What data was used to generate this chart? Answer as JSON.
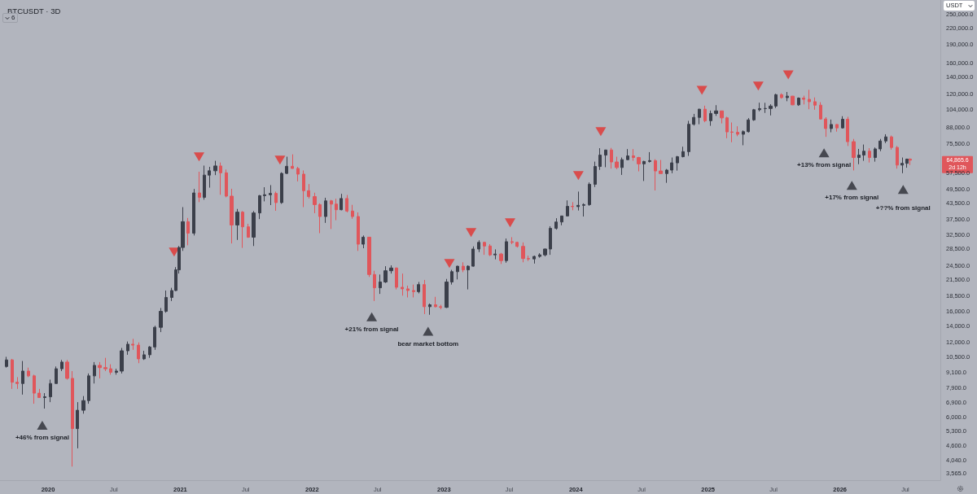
{
  "chart_data": {
    "type": "candlestick",
    "title": "BTCUSDT · 3D",
    "ylabel": "USDT",
    "log": true,
    "marker": "triangle",
    "xlim": [
      "2019-08-21",
      "2026-10-06"
    ],
    "ylim": [
      3350,
      286000
    ],
    "xticks": [
      {
        "value": "2020-01-01",
        "label": "2020"
      },
      {
        "value": "2020-07-01",
        "label": "Jul"
      },
      {
        "value": "2021-01-01",
        "label": "2021"
      },
      {
        "value": "2021-07-01",
        "label": "Jul"
      },
      {
        "value": "2022-01-01",
        "label": "2022"
      },
      {
        "value": "2022-07-01",
        "label": "Jul"
      },
      {
        "value": "2023-01-01",
        "label": "2023"
      },
      {
        "value": "2023-07-01",
        "label": "Jul"
      },
      {
        "value": "2024-01-01",
        "label": "2024"
      },
      {
        "value": "2024-07-01",
        "label": "Jul"
      },
      {
        "value": "2025-01-01",
        "label": "2025"
      },
      {
        "value": "2025-07-01",
        "label": "Jul"
      },
      {
        "value": "2026-01-01",
        "label": "2026"
      },
      {
        "value": "2026-07-01",
        "label": "Jul"
      }
    ],
    "yticks": [
      {
        "value": 3565,
        "label": "3,565.0"
      },
      {
        "value": 4040,
        "label": "4,040.0"
      },
      {
        "value": 4600,
        "label": "4,600.0"
      },
      {
        "value": 5300,
        "label": "5,300.0"
      },
      {
        "value": 6000,
        "label": "6,000.0"
      },
      {
        "value": 6900,
        "label": "6,900.0"
      },
      {
        "value": 7900,
        "label": "7,900.0"
      },
      {
        "value": 9100,
        "label": "9,100.0"
      },
      {
        "value": 10500,
        "label": "10,500.0"
      },
      {
        "value": 12000,
        "label": "12,000.0"
      },
      {
        "value": 14000,
        "label": "14,000.0"
      },
      {
        "value": 16000,
        "label": "16,000.0"
      },
      {
        "value": 18500,
        "label": "18,500.0"
      },
      {
        "value": 21500,
        "label": "21,500.0"
      },
      {
        "value": 24500,
        "label": "24,500.0"
      },
      {
        "value": 28500,
        "label": "28,500.0"
      },
      {
        "value": 32500,
        "label": "32,500.0"
      },
      {
        "value": 37500,
        "label": "37,500.0"
      },
      {
        "value": 43500,
        "label": "43,500.0"
      },
      {
        "value": 49500,
        "label": "49,500.0"
      },
      {
        "value": 57500,
        "label": "57,500.0"
      },
      {
        "value": 75500,
        "label": "75,500.0"
      },
      {
        "value": 88000,
        "label": "88,000.0"
      },
      {
        "value": 104000,
        "label": "104,000.0"
      },
      {
        "value": 120000,
        "label": "120,000.0"
      },
      {
        "value": 140000,
        "label": "140,000.0"
      },
      {
        "value": 160000,
        "label": "160,000.0"
      },
      {
        "value": 190000,
        "label": "190,000.0"
      },
      {
        "value": 220000,
        "label": "220,000.0"
      },
      {
        "value": 250000,
        "label": "250,000.0"
      }
    ],
    "x": [
      "2019-09-08",
      "2019-09-23",
      "2019-10-08",
      "2019-10-23",
      "2019-11-08",
      "2019-11-23",
      "2019-12-08",
      "2019-12-23",
      "2020-01-08",
      "2020-01-23",
      "2020-02-08",
      "2020-02-23",
      "2020-03-08",
      "2020-03-23",
      "2020-04-08",
      "2020-04-23",
      "2020-05-08",
      "2020-05-23",
      "2020-06-08",
      "2020-06-23",
      "2020-07-08",
      "2020-07-23",
      "2020-08-08",
      "2020-08-23",
      "2020-09-08",
      "2020-09-23",
      "2020-10-08",
      "2020-10-23",
      "2020-11-08",
      "2020-11-23",
      "2020-12-08",
      "2020-12-19",
      "2020-12-28",
      "2021-01-08",
      "2021-01-23",
      "2021-02-08",
      "2021-02-23",
      "2021-03-08",
      "2021-03-23",
      "2021-04-08",
      "2021-04-23",
      "2021-05-08",
      "2021-05-23",
      "2021-06-08",
      "2021-06-23",
      "2021-07-08",
      "2021-07-23",
      "2021-08-08",
      "2021-08-23",
      "2021-09-08",
      "2021-09-23",
      "2021-10-08",
      "2021-10-23",
      "2021-11-08",
      "2021-11-23",
      "2021-12-08",
      "2021-12-23",
      "2022-01-08",
      "2022-01-23",
      "2022-02-08",
      "2022-02-23",
      "2022-03-08",
      "2022-03-23",
      "2022-04-08",
      "2022-04-23",
      "2022-05-08",
      "2022-05-23",
      "2022-06-08",
      "2022-06-23",
      "2022-07-08",
      "2022-07-23",
      "2022-08-08",
      "2022-08-23",
      "2022-09-08",
      "2022-09-23",
      "2022-10-08",
      "2022-10-23",
      "2022-11-08",
      "2022-11-23",
      "2022-12-08",
      "2022-12-23",
      "2023-01-08",
      "2023-01-23",
      "2023-02-08",
      "2023-02-23",
      "2023-03-08",
      "2023-03-23",
      "2023-04-08",
      "2023-04-23",
      "2023-05-08",
      "2023-05-23",
      "2023-06-08",
      "2023-06-23",
      "2023-07-08",
      "2023-07-23",
      "2023-08-08",
      "2023-08-23",
      "2023-09-08",
      "2023-09-23",
      "2023-10-08",
      "2023-10-23",
      "2023-11-08",
      "2023-11-23",
      "2023-12-08",
      "2023-12-23",
      "2024-01-08",
      "2024-01-23",
      "2024-02-08",
      "2024-02-23",
      "2024-03-08",
      "2024-03-23",
      "2024-04-08",
      "2024-04-23",
      "2024-05-08",
      "2024-05-23",
      "2024-06-08",
      "2024-06-23",
      "2024-07-08",
      "2024-07-23",
      "2024-08-08",
      "2024-08-23",
      "2024-09-08",
      "2024-09-23",
      "2024-10-08",
      "2024-10-23",
      "2024-11-08",
      "2024-11-23",
      "2024-12-08",
      "2024-12-23",
      "2025-01-08",
      "2025-01-23",
      "2025-02-08",
      "2025-02-23",
      "2025-03-08",
      "2025-03-23",
      "2025-04-08",
      "2025-04-23",
      "2025-05-08",
      "2025-05-23",
      "2025-06-08",
      "2025-06-23",
      "2025-07-08",
      "2025-07-23",
      "2025-08-08",
      "2025-08-23",
      "2025-09-08",
      "2025-09-23",
      "2025-10-08",
      "2025-10-23",
      "2025-11-08",
      "2025-11-23",
      "2025-12-08",
      "2025-12-23",
      "2026-01-08",
      "2026-01-23",
      "2026-02-08",
      "2026-02-23",
      "2026-03-08",
      "2026-03-23",
      "2026-04-08",
      "2026-04-23",
      "2026-05-08",
      "2026-05-23",
      "2026-06-08",
      "2026-06-23",
      "2026-07-06",
      "2026-07-14"
    ],
    "ohlc": [
      [
        9600,
        10500,
        9500,
        10200
      ],
      [
        10200,
        10300,
        7800,
        8300
      ],
      [
        8300,
        8700,
        7800,
        8200
      ],
      [
        8200,
        10100,
        7400,
        9200
      ],
      [
        9200,
        9500,
        8700,
        8800
      ],
      [
        8800,
        8900,
        6800,
        7500
      ],
      [
        7500,
        7800,
        7200,
        7200
      ],
      [
        7200,
        7500,
        6500,
        7250
      ],
      [
        7250,
        8500,
        6900,
        8200
      ],
      [
        8200,
        9600,
        8200,
        9400
      ],
      [
        9400,
        10200,
        9200,
        10000
      ],
      [
        10000,
        10200,
        8500,
        8600
      ],
      [
        8600,
        9200,
        3800,
        5400
      ],
      [
        5400,
        6900,
        4500,
        6400
      ],
      [
        6400,
        7300,
        6200,
        7000
      ],
      [
        7000,
        9000,
        6800,
        8800
      ],
      [
        8800,
        10000,
        8200,
        9700
      ],
      [
        9700,
        10000,
        8600,
        9500
      ],
      [
        9500,
        10400,
        9200,
        9400
      ],
      [
        9400,
        9800,
        8900,
        9100
      ],
      [
        9100,
        9400,
        8900,
        9200
      ],
      [
        9200,
        11400,
        9000,
        11100
      ],
      [
        11100,
        12100,
        10700,
        11800
      ],
      [
        11800,
        12400,
        11200,
        11700
      ],
      [
        11700,
        12000,
        9900,
        10300
      ],
      [
        10300,
        11100,
        10200,
        10700
      ],
      [
        10700,
        11600,
        10400,
        11500
      ],
      [
        11500,
        14000,
        11200,
        13800
      ],
      [
        13800,
        16500,
        13200,
        16000
      ],
      [
        16000,
        19400,
        15800,
        18200
      ],
      [
        18200,
        19900,
        17600,
        19400
      ],
      [
        19400,
        24100,
        19300,
        23500
      ],
      [
        23500,
        29300,
        22700,
        28900
      ],
      [
        28900,
        42000,
        28000,
        36700
      ],
      [
        36700,
        38000,
        29500,
        33000
      ],
      [
        33000,
        49700,
        32300,
        47900
      ],
      [
        47900,
        58300,
        44000,
        46000
      ],
      [
        46000,
        61700,
        45000,
        56500
      ],
      [
        56500,
        61000,
        50300,
        58800
      ],
      [
        58800,
        64500,
        56500,
        61500
      ],
      [
        61500,
        63500,
        47100,
        57700
      ],
      [
        57700,
        59500,
        46000,
        46500
      ],
      [
        46500,
        49800,
        30000,
        35600
      ],
      [
        35600,
        41300,
        31000,
        40100
      ],
      [
        40100,
        40500,
        28800,
        35000
      ],
      [
        35000,
        36000,
        31600,
        31800
      ],
      [
        31800,
        40500,
        29300,
        39800
      ],
      [
        39800,
        47000,
        37600,
        46700
      ],
      [
        46700,
        50500,
        44300,
        47100
      ],
      [
        47100,
        51500,
        42800,
        47700
      ],
      [
        47700,
        48500,
        40600,
        43800
      ],
      [
        43800,
        58000,
        43300,
        57400
      ],
      [
        57400,
        67000,
        57000,
        61300
      ],
      [
        61300,
        68500,
        60000,
        60100
      ],
      [
        60100,
        61000,
        53300,
        57000
      ],
      [
        57000,
        59000,
        42000,
        48900
      ],
      [
        48900,
        52000,
        45500,
        46300
      ],
      [
        46300,
        48000,
        39700,
        43000
      ],
      [
        43000,
        43500,
        33000,
        38500
      ],
      [
        38500,
        45800,
        36300,
        44500
      ],
      [
        44500,
        44900,
        34300,
        43200
      ],
      [
        43200,
        45400,
        37200,
        41000
      ],
      [
        41000,
        47500,
        40800,
        45500
      ],
      [
        45500,
        47000,
        40000,
        40500
      ],
      [
        40500,
        42900,
        37700,
        38500
      ],
      [
        38500,
        40000,
        28000,
        29800
      ],
      [
        29800,
        32300,
        28700,
        31800
      ],
      [
        31800,
        31900,
        22000,
        22500
      ],
      [
        22500,
        23300,
        17600,
        19900
      ],
      [
        19900,
        22500,
        18800,
        21000
      ],
      [
        21000,
        24300,
        20800,
        23300
      ],
      [
        23300,
        24500,
        22700,
        23900
      ],
      [
        23900,
        24000,
        19600,
        20000
      ],
      [
        20000,
        22700,
        18500,
        19700
      ],
      [
        19700,
        20300,
        18200,
        19400
      ],
      [
        19400,
        20500,
        18200,
        19200
      ],
      [
        19200,
        21000,
        18900,
        20500
      ],
      [
        20500,
        21400,
        15600,
        16700
      ],
      [
        16700,
        17200,
        15500,
        17000
      ],
      [
        17000,
        18300,
        16600,
        16700
      ],
      [
        16700,
        17000,
        16300,
        16600
      ],
      [
        16600,
        21600,
        16500,
        21000
      ],
      [
        21000,
        23500,
        20500,
        23100
      ],
      [
        23100,
        24400,
        21500,
        24300
      ],
      [
        24300,
        25200,
        23000,
        23500
      ],
      [
        23500,
        24500,
        19600,
        24300
      ],
      [
        24300,
        29200,
        24200,
        28500
      ],
      [
        28500,
        30900,
        27700,
        30300
      ],
      [
        30300,
        30500,
        27000,
        29300
      ],
      [
        29300,
        29800,
        26700,
        27000
      ],
      [
        27000,
        28400,
        25900,
        27200
      ],
      [
        27200,
        27500,
        24800,
        25600
      ],
      [
        25600,
        31400,
        25100,
        30500
      ],
      [
        30500,
        31800,
        29800,
        30300
      ],
      [
        30300,
        30500,
        28900,
        29200
      ],
      [
        29200,
        30300,
        25200,
        26100
      ],
      [
        26100,
        26800,
        25500,
        26000
      ],
      [
        26000,
        26800,
        24900,
        26600
      ],
      [
        26600,
        27400,
        26300,
        27000
      ],
      [
        27000,
        28600,
        26600,
        28500
      ],
      [
        28500,
        35200,
        27000,
        34500
      ],
      [
        34500,
        37900,
        34100,
        36600
      ],
      [
        36600,
        38800,
        35500,
        38700
      ],
      [
        38700,
        44700,
        38500,
        42300
      ],
      [
        42300,
        44000,
        40800,
        42200
      ],
      [
        42200,
        48500,
        40700,
        42700
      ],
      [
        42700,
        43500,
        38500,
        43000
      ],
      [
        43000,
        52800,
        42500,
        51900
      ],
      [
        51900,
        64000,
        50600,
        61200
      ],
      [
        61200,
        72500,
        59300,
        68000
      ],
      [
        68000,
        71500,
        60800,
        71300
      ],
      [
        71300,
        72700,
        60000,
        63800
      ],
      [
        63800,
        67000,
        59700,
        60600
      ],
      [
        60600,
        66500,
        56600,
        65200
      ],
      [
        65200,
        71900,
        65000,
        67500
      ],
      [
        67500,
        71900,
        64500,
        66500
      ],
      [
        66500,
        66900,
        58500,
        62700
      ],
      [
        62700,
        64500,
        53500,
        64100
      ],
      [
        64100,
        69900,
        63500,
        64600
      ],
      [
        64600,
        65500,
        49000,
        58700
      ],
      [
        58700,
        65000,
        57200,
        57300
      ],
      [
        57300,
        59800,
        52600,
        59200
      ],
      [
        59200,
        66500,
        57500,
        63300
      ],
      [
        63300,
        67500,
        58900,
        67000
      ],
      [
        67000,
        73500,
        66600,
        70200
      ],
      [
        70200,
        93400,
        67500,
        90500
      ],
      [
        90500,
        99600,
        89400,
        96400
      ],
      [
        96400,
        104500,
        90500,
        104000
      ],
      [
        104000,
        107500,
        92200,
        93500
      ],
      [
        93500,
        102700,
        89200,
        100000
      ],
      [
        100000,
        108000,
        97800,
        102400
      ],
      [
        102400,
        102500,
        91200,
        96000
      ],
      [
        96000,
        97000,
        79500,
        84300
      ],
      [
        84300,
        92000,
        76600,
        84000
      ],
      [
        84000,
        88800,
        81000,
        82500
      ],
      [
        82500,
        85500,
        74500,
        84500
      ],
      [
        84500,
        95800,
        83800,
        94200
      ],
      [
        94200,
        104300,
        93400,
        103500
      ],
      [
        103500,
        110500,
        102000,
        104600
      ],
      [
        104600,
        110400,
        100500,
        104700
      ],
      [
        104700,
        108900,
        98200,
        107100
      ],
      [
        107100,
        120000,
        105200,
        119000
      ],
      [
        119000,
        120500,
        114700,
        115800
      ],
      [
        115800,
        122000,
        112000,
        117400
      ],
      [
        117400,
        117600,
        108000,
        108300
      ],
      [
        108300,
        116000,
        107300,
        115300
      ],
      [
        115300,
        117900,
        108700,
        114000
      ],
      [
        114000,
        124500,
        104000,
        111500
      ],
      [
        111500,
        116000,
        103500,
        108000
      ],
      [
        108000,
        111000,
        94500,
        95000
      ],
      [
        95000,
        96600,
        80500,
        87000
      ],
      [
        87000,
        94500,
        84000,
        90300
      ],
      [
        90300,
        90500,
        84500,
        87500
      ],
      [
        87500,
        97500,
        87000,
        94800
      ],
      [
        94800,
        97000,
        74000,
        77000
      ],
      [
        77000,
        79000,
        59000,
        66500
      ],
      [
        66500,
        72000,
        62500,
        68000
      ],
      [
        68000,
        75000,
        64500,
        70500
      ],
      [
        70500,
        72500,
        63500,
        66500
      ],
      [
        66500,
        73000,
        64000,
        72000
      ],
      [
        72000,
        79000,
        70500,
        77500
      ],
      [
        77500,
        82500,
        76000,
        80500
      ],
      [
        80500,
        81500,
        71500,
        73000
      ],
      [
        73000,
        74000,
        60000,
        62000
      ],
      [
        62000,
        66500,
        57500,
        63000
      ],
      [
        63000,
        65800,
        60500,
        65500
      ],
      [
        65500,
        66000,
        62000,
        64865.6
      ]
    ],
    "colors": [
      "#3b3f4a",
      "#e0565b",
      "#e0565b",
      "#3b3f4a",
      "#e0565b",
      "#e0565b",
      "#e0565b",
      "#3b3f4a",
      "#3b3f4a",
      "#3b3f4a",
      "#3b3f4a",
      "#e0565b",
      "#e0565b",
      "#3b3f4a",
      "#3b3f4a",
      "#3b3f4a",
      "#3b3f4a",
      "#e0565b",
      "#e0565b",
      "#e0565b",
      "#3b3f4a",
      "#3b3f4a",
      "#3b3f4a",
      "#e0565b",
      "#e0565b",
      "#3b3f4a",
      "#3b3f4a",
      "#3b3f4a",
      "#3b3f4a",
      "#3b3f4a",
      "#3b3f4a",
      "#3b3f4a",
      "#3b3f4a",
      "#3b3f4a",
      "#e0565b",
      "#3b3f4a",
      "#e0565b",
      "#3b3f4a",
      "#3b3f4a",
      "#3b3f4a",
      "#e0565b",
      "#e0565b",
      "#e0565b",
      "#3b3f4a",
      "#e0565b",
      "#e0565b",
      "#3b3f4a",
      "#3b3f4a",
      "#3b3f4a",
      "#3b3f4a",
      "#e0565b",
      "#3b3f4a",
      "#3b3f4a",
      "#e0565b",
      "#e0565b",
      "#e0565b",
      "#e0565b",
      "#e0565b",
      "#e0565b",
      "#3b3f4a",
      "#e0565b",
      "#e0565b",
      "#3b3f4a",
      "#e0565b",
      "#e0565b",
      "#e0565b",
      "#3b3f4a",
      "#e0565b",
      "#e0565b",
      "#3b3f4a",
      "#3b3f4a",
      "#3b3f4a",
      "#e0565b",
      "#e0565b",
      "#e0565b",
      "#e0565b",
      "#3b3f4a",
      "#e0565b",
      "#3b3f4a",
      "#e0565b",
      "#e0565b",
      "#3b3f4a",
      "#3b3f4a",
      "#3b3f4a",
      "#e0565b",
      "#3b3f4a",
      "#3b3f4a",
      "#3b3f4a",
      "#e0565b",
      "#e0565b",
      "#3b3f4a",
      "#e0565b",
      "#3b3f4a",
      "#e0565b",
      "#e0565b",
      "#e0565b",
      "#e0565b",
      "#3b3f4a",
      "#3b3f4a",
      "#3b3f4a",
      "#3b3f4a",
      "#3b3f4a",
      "#3b3f4a",
      "#3b3f4a",
      "#e0565b",
      "#3b3f4a",
      "#3b3f4a",
      "#3b3f4a",
      "#3b3f4a",
      "#3b3f4a",
      "#3b3f4a",
      "#e0565b",
      "#e0565b",
      "#3b3f4a",
      "#3b3f4a",
      "#e0565b",
      "#e0565b",
      "#3b3f4a",
      "#3b3f4a",
      "#e0565b",
      "#e0565b",
      "#3b3f4a",
      "#3b3f4a",
      "#3b3f4a",
      "#3b3f4a",
      "#3b3f4a",
      "#3b3f4a",
      "#3b3f4a",
      "#e0565b",
      "#3b3f4a",
      "#3b3f4a",
      "#e0565b",
      "#e0565b",
      "#e0565b",
      "#e0565b",
      "#3b3f4a",
      "#3b3f4a",
      "#3b3f4a",
      "#3b3f4a",
      "#3b3f4a",
      "#3b3f4a",
      "#3b3f4a",
      "#e0565b",
      "#3b3f4a",
      "#e0565b",
      "#3b3f4a",
      "#e0565b",
      "#e0565b",
      "#e0565b",
      "#e0565b",
      "#e0565b",
      "#3b3f4a",
      "#e0565b",
      "#3b3f4a",
      "#e0565b",
      "#e0565b",
      "#3b3f4a",
      "#3b3f4a",
      "#e0565b",
      "#3b3f4a",
      "#3b3f4a",
      "#3b3f4a",
      "#e0565b",
      "#e0565b",
      "#3b3f4a",
      "#3b3f4a",
      "#e0565b"
    ],
    "series": [
      {
        "type": "scatter",
        "color": "#e2322f",
        "x": [
          "2020-12-15",
          "2021-02-22",
          "2021-10-04",
          "2023-01-16",
          "2023-03-17",
          "2023-07-03",
          "2024-01-08",
          "2024-03-10",
          "2024-12-15",
          "2025-05-20",
          "2025-08-11"
        ],
        "values": [
          27700,
          66900,
          64900,
          24900,
          33200,
          36300,
          56200,
          84500,
          124000,
          128800,
          143000
        ]
      },
      {
        "type": "scatter",
        "color": "#2a2d34",
        "x": [
          "2019-12-16",
          "2022-06-15",
          "2022-11-18",
          "2025-11-18",
          "2026-02-03",
          "2026-06-25"
        ],
        "values": [
          5570,
          15200,
          13300,
          69500,
          51400,
          49500
        ]
      }
    ],
    "annotations": [
      {
        "text": "+46% from signal",
        "x": "2019-12-16",
        "y": 5570
      },
      {
        "text": "+21% from signal",
        "x": "2022-06-15",
        "y": 15200
      },
      {
        "text": "bear market bottom",
        "x": "2022-11-18",
        "y": 13300
      },
      {
        "text": "+13% from signal",
        "x": "2025-11-18",
        "y": 69500
      },
      {
        "text": "+17% from signal",
        "x": "2026-02-03",
        "y": 51400
      },
      {
        "text": "+??% from signal",
        "x": "2026-06-25",
        "y": 49500
      },
      "64,865.6\n2d 12h",
      "6"
    ]
  }
}
